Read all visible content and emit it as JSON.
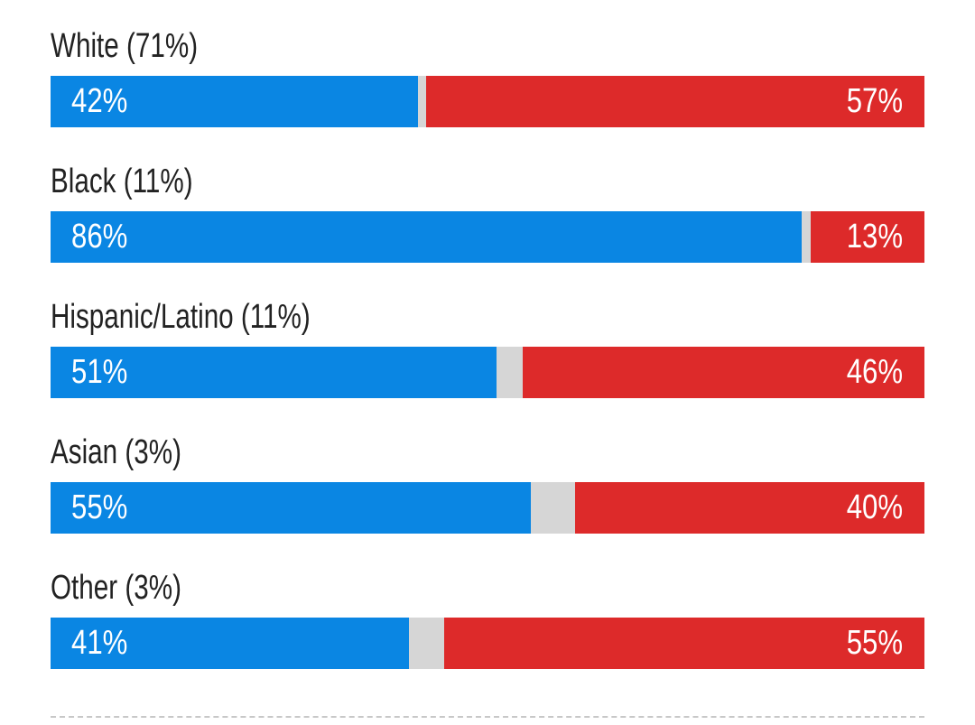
{
  "colors": {
    "dem": "#0a86e3",
    "rep": "#dd2a2a",
    "other": "#d6d6d6"
  },
  "chart_data": {
    "type": "bar",
    "orientation": "horizontal-stacked",
    "title": "",
    "xlim": [
      0,
      100
    ],
    "series": [
      {
        "name": "Blue",
        "key": "dem"
      },
      {
        "name": "Red",
        "key": "rep"
      }
    ],
    "rows": [
      {
        "label": "White (71%)",
        "dem": 42,
        "rep": 57,
        "dem_label": "42%",
        "rep_label": "57%"
      },
      {
        "label": "Black (11%)",
        "dem": 86,
        "rep": 13,
        "dem_label": "86%",
        "rep_label": "13%"
      },
      {
        "label": "Hispanic/Latino (11%)",
        "dem": 51,
        "rep": 46,
        "dem_label": "51%",
        "rep_label": "46%"
      },
      {
        "label": "Asian (3%)",
        "dem": 55,
        "rep": 40,
        "dem_label": "55%",
        "rep_label": "40%"
      },
      {
        "label": "Other (3%)",
        "dem": 41,
        "rep": 55,
        "dem_label": "41%",
        "rep_label": "55%"
      }
    ]
  }
}
